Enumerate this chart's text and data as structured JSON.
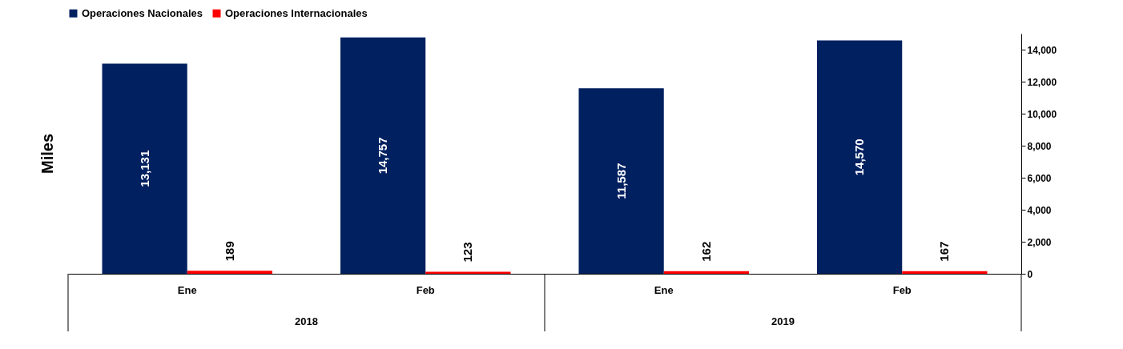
{
  "chart_data": {
    "type": "bar",
    "categories": [
      "Ene",
      "Feb",
      "Ene",
      "Feb"
    ],
    "series": [
      {
        "name": "Operaciones Nacionales",
        "color": "#002060",
        "values": [
          13131,
          14757,
          11587,
          14570
        ],
        "value_labels": [
          "13,131",
          "14,757",
          "11,587",
          "14,570"
        ]
      },
      {
        "name": "Operaciones Internacionales",
        "color": "#ff0000",
        "values": [
          189,
          123,
          162,
          167
        ],
        "value_labels": [
          "189",
          "123",
          "162",
          "167"
        ]
      }
    ],
    "ylabel": "Miles",
    "ylim": [
      0,
      15000
    ],
    "yticks": [
      0,
      {
        "value": 2000,
        "label": "2,000"
      },
      {
        "value": 4000,
        "label": "4,000"
      },
      {
        "value": 6000,
        "label": "6,000"
      },
      {
        "value": 8000,
        "label": "8,000"
      },
      {
        "value": 10000,
        "label": "10,000"
      },
      {
        "value": 12000,
        "label": "12,000"
      },
      {
        "value": 14000,
        "label": "14,000"
      }
    ],
    "legend": "top",
    "grid": false,
    "annotations": [
      "2018",
      "2019"
    ]
  }
}
